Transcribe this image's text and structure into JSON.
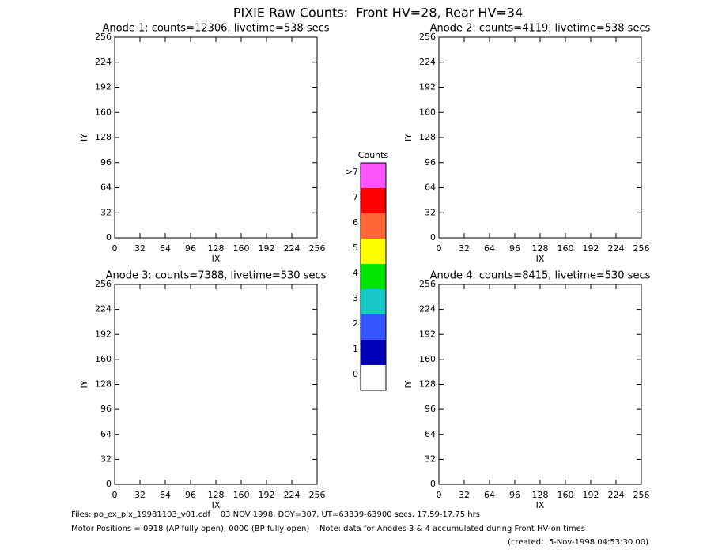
{
  "title": "PIXIE Raw Counts:  Front HV=28, Rear HV=34",
  "chart_data": [
    {
      "type": "scatter",
      "title": "Anode 1: counts=12306, livetime=538 secs",
      "xlabel": "IX",
      "ylabel": "IY",
      "xlim": [
        0,
        256
      ],
      "ylim": [
        0,
        256
      ],
      "xticks": [
        0,
        32,
        64,
        96,
        128,
        160,
        192,
        224,
        256
      ],
      "yticks": [
        0,
        32,
        64,
        96,
        128,
        160,
        192,
        224,
        256
      ]
    },
    {
      "type": "scatter",
      "title": "Anode 2: counts=4119, livetime=538 secs",
      "xlabel": "IX",
      "ylabel": "IY",
      "xlim": [
        0,
        256
      ],
      "ylim": [
        0,
        256
      ],
      "xticks": [
        0,
        32,
        64,
        96,
        128,
        160,
        192,
        224,
        256
      ],
      "yticks": [
        0,
        32,
        64,
        96,
        128,
        160,
        192,
        224,
        256
      ]
    },
    {
      "type": "scatter",
      "title": "Anode 3: counts=7388, livetime=530 secs",
      "xlabel": "IX",
      "ylabel": "IY",
      "xlim": [
        0,
        256
      ],
      "ylim": [
        0,
        256
      ],
      "xticks": [
        0,
        32,
        64,
        96,
        128,
        160,
        192,
        224,
        256
      ],
      "yticks": [
        0,
        32,
        64,
        96,
        128,
        160,
        192,
        224,
        256
      ]
    },
    {
      "type": "scatter",
      "title": "Anode 4: counts=8415, livetime=530 secs",
      "xlabel": "IX",
      "ylabel": "IY",
      "xlim": [
        0,
        256
      ],
      "ylim": [
        0,
        256
      ],
      "xticks": [
        0,
        32,
        64,
        96,
        128,
        160,
        192,
        224,
        256
      ],
      "yticks": [
        0,
        32,
        64,
        96,
        128,
        160,
        192,
        224,
        256
      ]
    }
  ],
  "colorbar": {
    "title": "Counts",
    "levels": [
      {
        "label": ">7",
        "color": "#ff55ff"
      },
      {
        "label": "7",
        "color": "#ff0000"
      },
      {
        "label": "6",
        "color": "#ff6633"
      },
      {
        "label": "5",
        "color": "#ffff00"
      },
      {
        "label": "4",
        "color": "#00e600"
      },
      {
        "label": "3",
        "color": "#19c8c8"
      },
      {
        "label": "2",
        "color": "#3355ff"
      },
      {
        "label": "1",
        "color": "#0000bb"
      },
      {
        "label": "0",
        "color": "#ffffff"
      }
    ]
  },
  "footer": [
    "Files: po_ex_pix_19981103_v01.cdf    03 NOV 1998, DOY=307, UT=63339-63900 secs, 17.59-17.75 hrs",
    "Motor Positions = 0918 (AP fully open), 0000 (BP fully open)    Note: data for Anodes 3 & 4 accumulated during Front HV-on times",
    "(created:  5-Nov-1998 04:53:30.00)"
  ]
}
